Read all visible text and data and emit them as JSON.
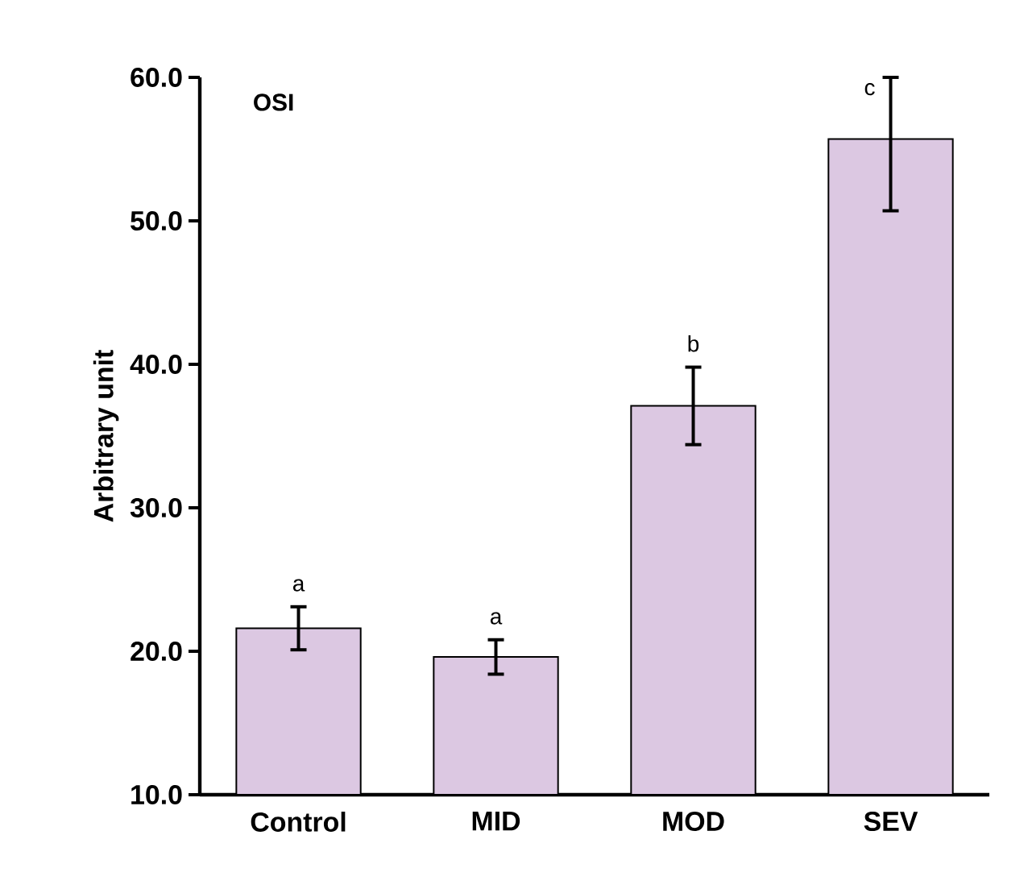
{
  "chart_data": {
    "type": "bar",
    "title": "OSI",
    "ylabel": "Arbitrary unit",
    "categories": [
      "Control",
      "MID",
      "MOD",
      "SEV"
    ],
    "values": [
      21.6,
      19.6,
      37.1,
      55.7
    ],
    "errors": [
      1.5,
      1.2,
      2.7,
      [
        50.7,
        60.0
      ]
    ],
    "color": "#dcc8e2",
    "ylim": [
      10,
      60
    ],
    "yticks": [
      {
        "value": 10,
        "label": "10.0"
      },
      {
        "value": 20,
        "label": "20.0"
      },
      {
        "value": 30,
        "label": "30.0"
      },
      {
        "value": 40,
        "label": "40.0"
      },
      {
        "value": 50,
        "label": "50.0"
      },
      {
        "value": 60,
        "label": "60.0"
      }
    ],
    "annotations": [
      "a",
      "a",
      "b",
      {
        "text": "c",
        "x": "SEV",
        "y": 60.0
      }
    ]
  }
}
